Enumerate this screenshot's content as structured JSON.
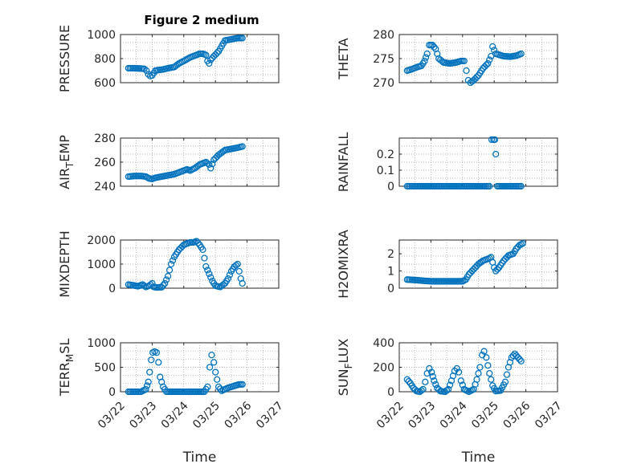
{
  "figure": {
    "title": "Figure 2 medium"
  },
  "colors": {
    "marker": "#0072BD",
    "axis": "#262626",
    "grid": "#9a9a9a"
  },
  "chart_data": [
    {
      "type": "scatter",
      "ylabel": "PRESSURE",
      "ylim": [
        600,
        1000
      ],
      "yticks": [
        600,
        800,
        1000
      ],
      "yticklabels": [
        "600",
        "800",
        "1000"
      ],
      "xlim": [
        0,
        5
      ],
      "xtick_labels_shown": false,
      "points": [
        [
          0.25,
          720
        ],
        [
          0.4,
          720
        ],
        [
          0.6,
          718
        ],
        [
          0.75,
          715
        ],
        [
          0.82,
          700
        ],
        [
          0.88,
          670
        ],
        [
          0.94,
          655
        ],
        [
          1.0,
          660
        ],
        [
          1.05,
          680
        ],
        [
          1.1,
          700
        ],
        [
          1.2,
          705
        ],
        [
          1.35,
          710
        ],
        [
          1.5,
          720
        ],
        [
          1.7,
          730
        ],
        [
          1.85,
          760
        ],
        [
          2.0,
          780
        ],
        [
          2.2,
          810
        ],
        [
          2.4,
          830
        ],
        [
          2.5,
          840
        ],
        [
          2.6,
          840
        ],
        [
          2.7,
          830
        ],
        [
          2.75,
          780
        ],
        [
          2.8,
          760
        ],
        [
          2.85,
          790
        ],
        [
          2.95,
          820
        ],
        [
          3.1,
          860
        ],
        [
          3.3,
          950
        ],
        [
          3.5,
          960
        ],
        [
          3.7,
          970
        ],
        [
          3.85,
          970
        ]
      ],
      "title": "Figure 2 medium"
    },
    {
      "type": "scatter",
      "ylabel": "THETA",
      "ylim": [
        270,
        280
      ],
      "yticks": [
        270,
        275,
        280
      ],
      "yticklabels": [
        "270",
        "275",
        "280"
      ],
      "xlim": [
        0,
        5
      ],
      "xtick_labels_shown": false,
      "points": [
        [
          0.25,
          272.5
        ],
        [
          0.4,
          272.8
        ],
        [
          0.55,
          273.2
        ],
        [
          0.7,
          273.5
        ],
        [
          0.8,
          274.5
        ],
        [
          0.88,
          276
        ],
        [
          0.95,
          277.8
        ],
        [
          1.05,
          277.8
        ],
        [
          1.15,
          277
        ],
        [
          1.25,
          275
        ],
        [
          1.4,
          274.2
        ],
        [
          1.6,
          274
        ],
        [
          1.8,
          274.2
        ],
        [
          1.95,
          274.5
        ],
        [
          2.05,
          274.5
        ],
        [
          2.12,
          272.5
        ],
        [
          2.18,
          270.5
        ],
        [
          2.25,
          270
        ],
        [
          2.35,
          270.5
        ],
        [
          2.5,
          271.5
        ],
        [
          2.65,
          273
        ],
        [
          2.8,
          274
        ],
        [
          2.9,
          275.5
        ],
        [
          2.95,
          277.5
        ],
        [
          3.05,
          276
        ],
        [
          3.3,
          275.5
        ],
        [
          3.5,
          275.4
        ],
        [
          3.7,
          275.6
        ],
        [
          3.85,
          276
        ]
      ]
    },
    {
      "type": "scatter",
      "ylabel": "AIR_TEMP",
      "ylim": [
        240,
        280
      ],
      "yticks": [
        240,
        260,
        280
      ],
      "yticklabels": [
        "240",
        "260",
        "280"
      ],
      "xlim": [
        0,
        5
      ],
      "xtick_labels_shown": false,
      "points": [
        [
          0.25,
          248
        ],
        [
          0.45,
          248.5
        ],
        [
          0.65,
          248.5
        ],
        [
          0.8,
          248
        ],
        [
          0.9,
          246.5
        ],
        [
          1.0,
          246
        ],
        [
          1.1,
          247
        ],
        [
          1.3,
          248
        ],
        [
          1.5,
          249
        ],
        [
          1.7,
          250
        ],
        [
          1.9,
          252
        ],
        [
          2.1,
          254
        ],
        [
          2.2,
          253
        ],
        [
          2.35,
          255
        ],
        [
          2.5,
          258
        ],
        [
          2.7,
          260
        ],
        [
          2.8,
          258
        ],
        [
          2.85,
          255
        ],
        [
          2.95,
          262
        ],
        [
          3.1,
          266
        ],
        [
          3.3,
          270
        ],
        [
          3.5,
          271
        ],
        [
          3.7,
          272
        ],
        [
          3.85,
          273
        ]
      ]
    },
    {
      "type": "scatter",
      "ylabel": "RAINFALL",
      "ylim": [
        0,
        0.3
      ],
      "yticks": [
        0,
        0.1,
        0.2
      ],
      "yticklabels": [
        "0",
        "0.1",
        "0.2"
      ],
      "xlim": [
        0,
        5
      ],
      "xtick_labels_shown": false,
      "points": [
        [
          0.25,
          0
        ],
        [
          0.5,
          0
        ],
        [
          0.75,
          0
        ],
        [
          1.0,
          0
        ],
        [
          1.25,
          0
        ],
        [
          1.5,
          0
        ],
        [
          1.75,
          0
        ],
        [
          2.0,
          0
        ],
        [
          2.2,
          0
        ],
        [
          2.5,
          0
        ],
        [
          2.75,
          0
        ],
        [
          2.85,
          0
        ],
        [
          2.92,
          0.29
        ],
        [
          2.98,
          0.29
        ],
        [
          3.02,
          0.29
        ],
        [
          3.05,
          0.2
        ],
        [
          3.1,
          0
        ],
        [
          3.3,
          0
        ],
        [
          3.5,
          0
        ],
        [
          3.7,
          0
        ],
        [
          3.85,
          0
        ]
      ]
    },
    {
      "type": "scatter",
      "ylabel": "MIXDEPTH",
      "ylim": [
        0,
        2000
      ],
      "yticks": [
        0,
        1000,
        2000
      ],
      "yticklabels": [
        "0",
        "1000",
        "2000"
      ],
      "xlim": [
        0,
        5
      ],
      "xtick_labels_shown": false,
      "points": [
        [
          0.25,
          150
        ],
        [
          0.4,
          120
        ],
        [
          0.55,
          80
        ],
        [
          0.7,
          150
        ],
        [
          0.8,
          50
        ],
        [
          0.9,
          100
        ],
        [
          1.0,
          200
        ],
        [
          1.05,
          50
        ],
        [
          1.15,
          30
        ],
        [
          1.3,
          40
        ],
        [
          1.4,
          200
        ],
        [
          1.5,
          500
        ],
        [
          1.6,
          1000
        ],
        [
          1.7,
          1300
        ],
        [
          1.85,
          1600
        ],
        [
          2.0,
          1800
        ],
        [
          2.1,
          1850
        ],
        [
          2.2,
          1900
        ],
        [
          2.3,
          1900
        ],
        [
          2.4,
          1950
        ],
        [
          2.5,
          1800
        ],
        [
          2.6,
          1600
        ],
        [
          2.7,
          900
        ],
        [
          2.8,
          600
        ],
        [
          2.9,
          300
        ],
        [
          3.0,
          100
        ],
        [
          3.15,
          50
        ],
        [
          3.3,
          200
        ],
        [
          3.4,
          400
        ],
        [
          3.5,
          700
        ],
        [
          3.6,
          900
        ],
        [
          3.7,
          1000
        ],
        [
          3.75,
          700
        ],
        [
          3.8,
          400
        ],
        [
          3.85,
          200
        ]
      ]
    },
    {
      "type": "scatter",
      "ylabel": "H2OMIXRA",
      "ylim": [
        0,
        2.8
      ],
      "yticks": [
        0,
        1,
        2
      ],
      "yticklabels": [
        "0",
        "1",
        "2"
      ],
      "xlim": [
        0,
        5
      ],
      "xtick_labels_shown": false,
      "points": [
        [
          0.25,
          0.5
        ],
        [
          0.45,
          0.48
        ],
        [
          0.65,
          0.45
        ],
        [
          0.85,
          0.42
        ],
        [
          1.0,
          0.4
        ],
        [
          1.2,
          0.4
        ],
        [
          1.4,
          0.4
        ],
        [
          1.6,
          0.4
        ],
        [
          1.8,
          0.4
        ],
        [
          2.0,
          0.4
        ],
        [
          2.1,
          0.5
        ],
        [
          2.2,
          0.8
        ],
        [
          2.35,
          1.1
        ],
        [
          2.5,
          1.4
        ],
        [
          2.65,
          1.6
        ],
        [
          2.8,
          1.7
        ],
        [
          2.9,
          1.8
        ],
        [
          2.95,
          1.5
        ],
        [
          3.0,
          1.2
        ],
        [
          3.05,
          1.0
        ],
        [
          3.15,
          1.2
        ],
        [
          3.3,
          1.6
        ],
        [
          3.45,
          1.9
        ],
        [
          3.6,
          2.0
        ],
        [
          3.7,
          2.3
        ],
        [
          3.8,
          2.5
        ],
        [
          3.9,
          2.6
        ]
      ]
    },
    {
      "type": "scatter",
      "ylabel": "TERR_MSL",
      "ylim": [
        0,
        1000
      ],
      "yticks": [
        0,
        500,
        1000
      ],
      "yticklabels": [
        "0",
        "500",
        "1000"
      ],
      "xlim": [
        0,
        5
      ],
      "xtick_labels_shown": [
        "03/22",
        "03/23",
        "03/24",
        "03/25",
        "03/26",
        "03/27"
      ],
      "xlabel": "Time",
      "points": [
        [
          0.25,
          0
        ],
        [
          0.45,
          0
        ],
        [
          0.65,
          0
        ],
        [
          0.8,
          50
        ],
        [
          0.88,
          200
        ],
        [
          0.92,
          400
        ],
        [
          0.97,
          650
        ],
        [
          1.02,
          800
        ],
        [
          1.08,
          820
        ],
        [
          1.14,
          800
        ],
        [
          1.2,
          600
        ],
        [
          1.25,
          300
        ],
        [
          1.3,
          200
        ],
        [
          1.35,
          100
        ],
        [
          1.45,
          0
        ],
        [
          1.65,
          0
        ],
        [
          1.85,
          0
        ],
        [
          2.05,
          0
        ],
        [
          2.25,
          0
        ],
        [
          2.45,
          0
        ],
        [
          2.65,
          0
        ],
        [
          2.75,
          100
        ],
        [
          2.82,
          500
        ],
        [
          2.88,
          750
        ],
        [
          2.95,
          600
        ],
        [
          3.0,
          400
        ],
        [
          3.1,
          100
        ],
        [
          3.2,
          20
        ],
        [
          3.4,
          80
        ],
        [
          3.6,
          120
        ],
        [
          3.75,
          150
        ],
        [
          3.85,
          150
        ]
      ]
    },
    {
      "type": "scatter",
      "ylabel": "SUN_FLUX",
      "ylim": [
        0,
        400
      ],
      "yticks": [
        0,
        200,
        400
      ],
      "yticklabels": [
        "0",
        "200",
        "400"
      ],
      "xlim": [
        0,
        5
      ],
      "xtick_labels_shown": [
        "03/22",
        "03/23",
        "03/24",
        "03/25",
        "03/26",
        "03/27"
      ],
      "xlabel": "Time",
      "points": [
        [
          0.25,
          100
        ],
        [
          0.35,
          70
        ],
        [
          0.45,
          30
        ],
        [
          0.55,
          5
        ],
        [
          0.65,
          0
        ],
        [
          0.75,
          20
        ],
        [
          0.82,
          80
        ],
        [
          0.88,
          150
        ],
        [
          0.95,
          190
        ],
        [
          1.02,
          160
        ],
        [
          1.1,
          90
        ],
        [
          1.2,
          30
        ],
        [
          1.3,
          5
        ],
        [
          1.45,
          0
        ],
        [
          1.55,
          20
        ],
        [
          1.65,
          90
        ],
        [
          1.75,
          170
        ],
        [
          1.82,
          190
        ],
        [
          1.88,
          160
        ],
        [
          1.95,
          90
        ],
        [
          2.05,
          20
        ],
        [
          2.2,
          0
        ],
        [
          2.35,
          20
        ],
        [
          2.45,
          100
        ],
        [
          2.55,
          200
        ],
        [
          2.62,
          300
        ],
        [
          2.68,
          330
        ],
        [
          2.75,
          280
        ],
        [
          2.85,
          150
        ],
        [
          2.95,
          50
        ],
        [
          3.05,
          5
        ],
        [
          3.2,
          10
        ],
        [
          3.35,
          80
        ],
        [
          3.45,
          200
        ],
        [
          3.55,
          280
        ],
        [
          3.65,
          310
        ],
        [
          3.75,
          280
        ],
        [
          3.85,
          250
        ]
      ]
    }
  ],
  "xaxis": {
    "labels": [
      "03/22",
      "03/23",
      "03/24",
      "03/25",
      "03/26",
      "03/27"
    ],
    "xlabel": "Time"
  }
}
